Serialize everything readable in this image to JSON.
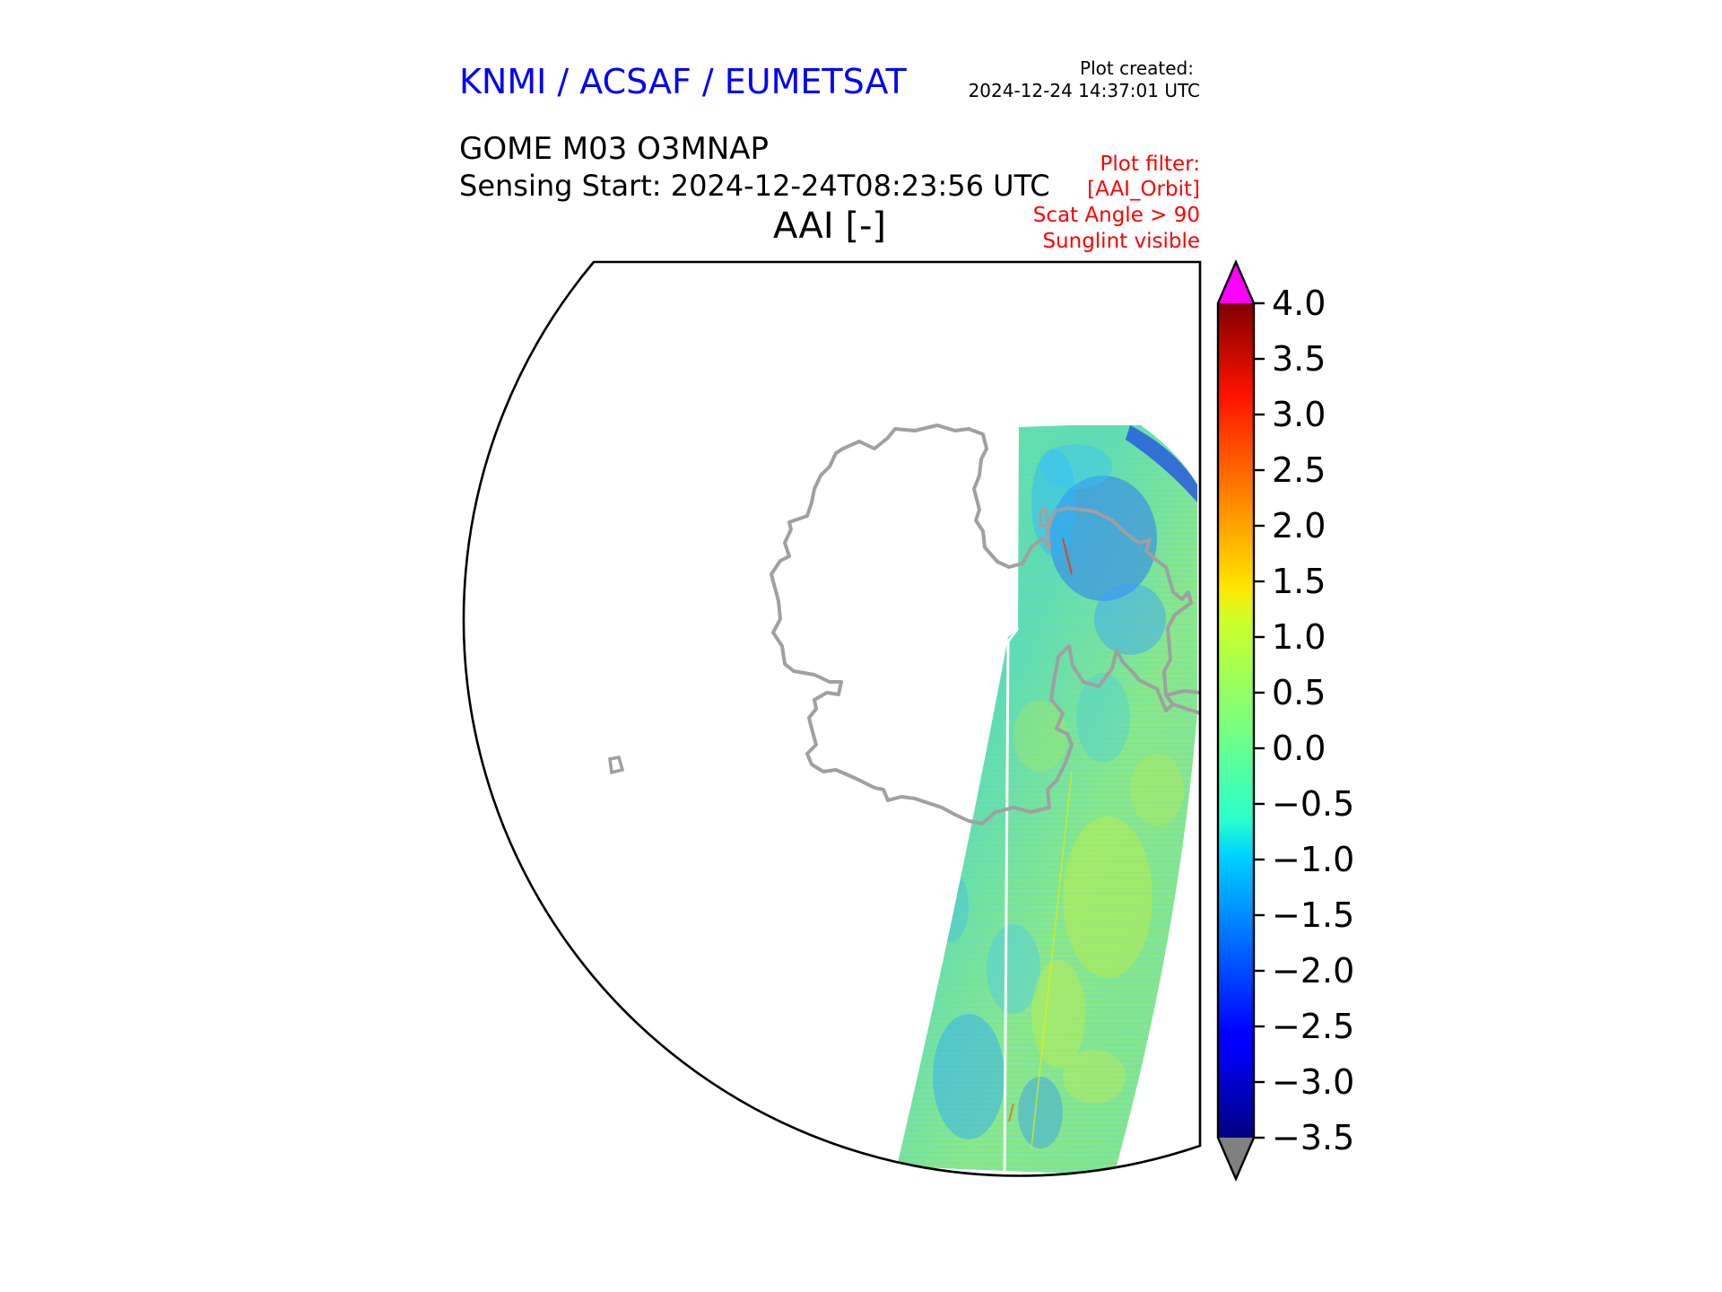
{
  "header": {
    "org": "KNMI / ACSAF / EUMETSAT",
    "created_label": "Plot created:",
    "created_time": "2024-12-24 14:37:01 UTC",
    "product": "GOME M03 O3MNAP",
    "sensing": "Sensing Start: 2024-12-24T08:23:56 UTC",
    "filter_lines": [
      "Plot filter:",
      "[AAI_Orbit]",
      "Scat Angle > 90",
      "Sunglint visible"
    ]
  },
  "colors": {
    "org": "#0000ff",
    "filter": "#ff0000",
    "coast": "#a0a0a0",
    "over": "#ff00ff",
    "under": "#808080"
  },
  "chart_data": {
    "type": "heatmap",
    "title": "AAI [-]",
    "projection": "south polar stereographic (cropped)",
    "colormap": "jet",
    "colorbar": {
      "vmin": -3.5,
      "vmax": 4.0,
      "ticks": [
        4.0,
        3.5,
        3.0,
        2.5,
        2.0,
        1.5,
        1.0,
        0.5,
        0.0,
        -0.5,
        -1.0,
        -1.5,
        -2.0,
        -2.5,
        -3.0,
        -3.5
      ],
      "tick_labels": [
        "4.0",
        "3.5",
        "3.0",
        "2.5",
        "2.0",
        "1.5",
        "1.0",
        "0.5",
        "0.0",
        "−0.5",
        "−1.0",
        "−1.5",
        "−2.0",
        "−2.5",
        "−3.0",
        "−3.5"
      ],
      "extend": "both"
    },
    "swath_typical_range": [
      -1.5,
      1.0
    ]
  }
}
